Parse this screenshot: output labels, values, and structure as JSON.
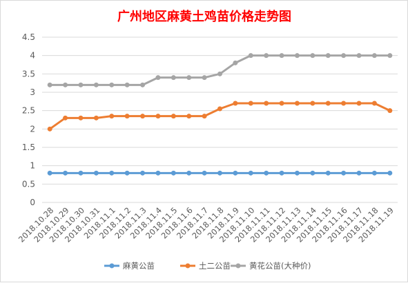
{
  "chart_data": {
    "type": "line",
    "title": "广州地区麻黄土鸡苗价格走势图",
    "categories": [
      "2018.10.28",
      "2018.10.29",
      "2018.10.30",
      "2018.10.31",
      "2018.11.1",
      "2018.11.2",
      "2018.11.3",
      "2018.11.4",
      "2018.11.5",
      "2018.11.6",
      "2018.11.7",
      "2018.11.8",
      "2018.11.9",
      "2018.11.10",
      "2018.11.11",
      "2018.11.12",
      "2018.11.13",
      "2018.11.14",
      "2018.11.15",
      "2018.11.16",
      "2018.11.17",
      "2018.11.18",
      "2018.11.19"
    ],
    "yticks": [
      "0",
      "0.5",
      "1",
      "1.5",
      "2",
      "2.5",
      "3",
      "3.5",
      "4",
      "4.5"
    ],
    "ylim": [
      0,
      4.5
    ],
    "grid": true,
    "legend_position": "bottom",
    "series": [
      {
        "name": "麻黄公苗",
        "color": "#5b9bd5",
        "values": [
          0.8,
          0.8,
          0.8,
          0.8,
          0.8,
          0.8,
          0.8,
          0.8,
          0.8,
          0.8,
          0.8,
          0.8,
          0.8,
          0.8,
          0.8,
          0.8,
          0.8,
          0.8,
          0.8,
          0.8,
          0.8,
          0.8,
          0.8
        ]
      },
      {
        "name": "土二公苗",
        "color": "#ed7d31",
        "values": [
          2.0,
          2.3,
          2.3,
          2.3,
          2.35,
          2.35,
          2.35,
          2.35,
          2.35,
          2.35,
          2.35,
          2.55,
          2.7,
          2.7,
          2.7,
          2.7,
          2.7,
          2.7,
          2.7,
          2.7,
          2.7,
          2.7,
          2.5
        ]
      },
      {
        "name": "黄花公苗(大种价)",
        "color": "#a5a5a5",
        "values": [
          3.2,
          3.2,
          3.2,
          3.2,
          3.2,
          3.2,
          3.2,
          3.4,
          3.4,
          3.4,
          3.4,
          3.5,
          3.8,
          4.0,
          4.0,
          4.0,
          4.0,
          4.0,
          4.0,
          4.0,
          4.0,
          4.0,
          4.0
        ]
      }
    ]
  }
}
